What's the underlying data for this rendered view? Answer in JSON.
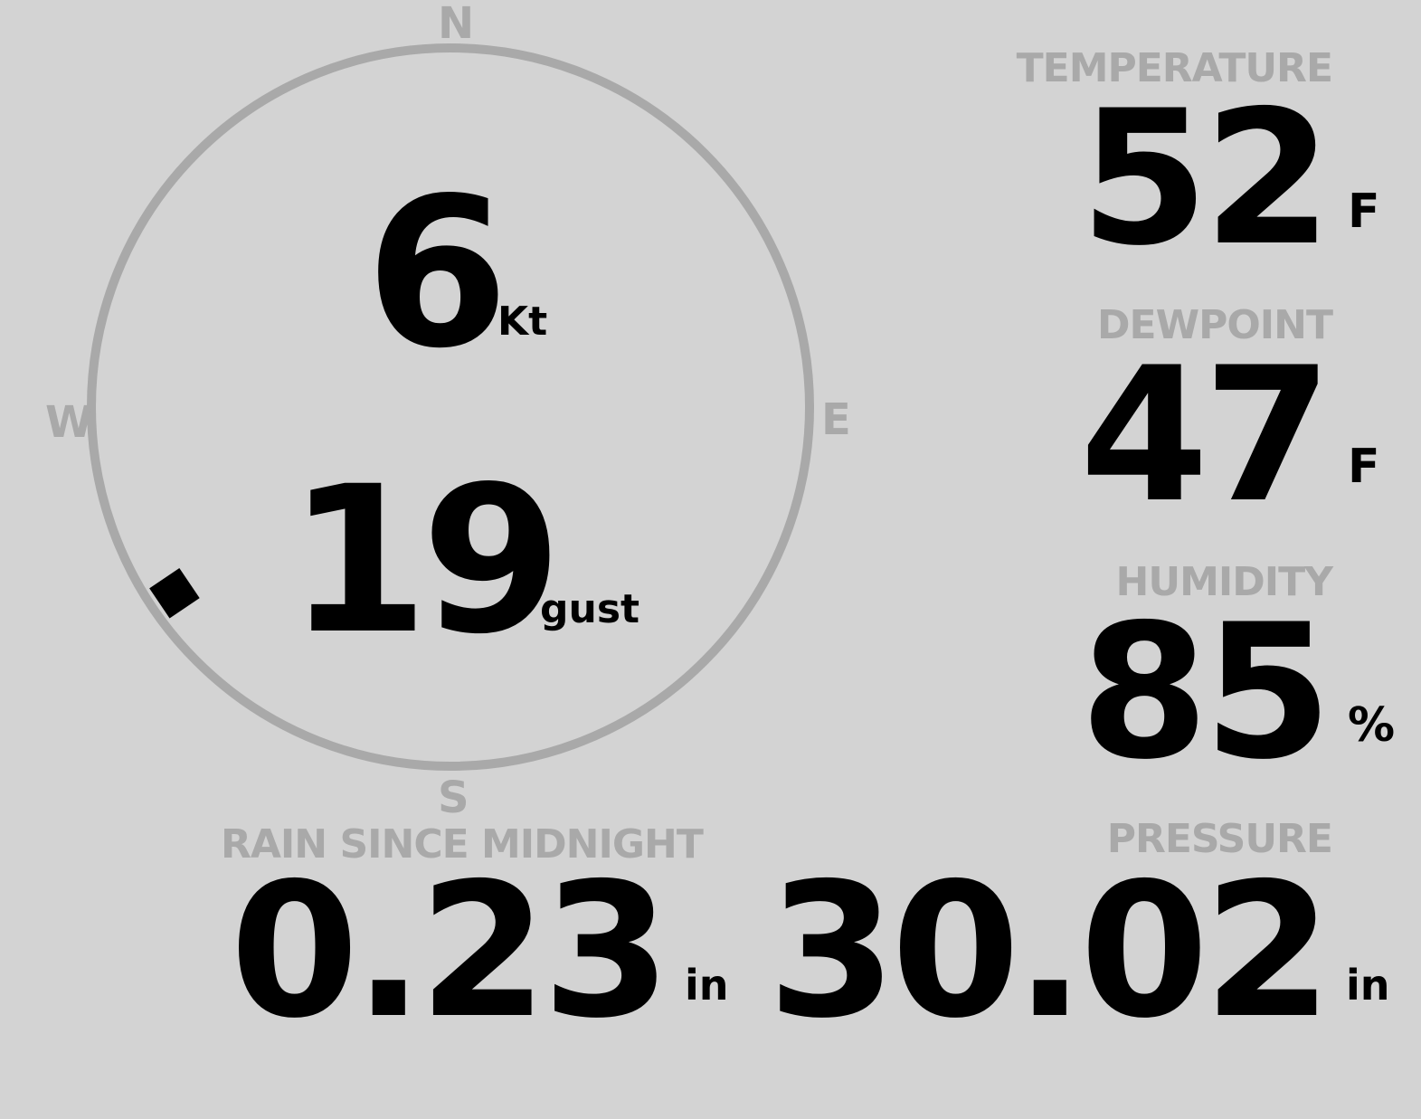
{
  "wind": {
    "speed": "6",
    "speed_unit": "Kt",
    "gust": "19",
    "gust_label": "gust",
    "direction_deg": 236,
    "cardinals": {
      "n": "N",
      "e": "E",
      "s": "S",
      "w": "W"
    }
  },
  "temperature": {
    "label": "TEMPERATURE",
    "value": "52",
    "unit": "F"
  },
  "dewpoint": {
    "label": "DEWPOINT",
    "value": "47",
    "unit": "F"
  },
  "humidity": {
    "label": "HUMIDITY",
    "value": "85",
    "unit": "%"
  },
  "rain": {
    "label": "RAIN SINCE MIDNIGHT",
    "value": "0.23",
    "unit": "in"
  },
  "pressure": {
    "label": "PRESSURE",
    "value": "30.02",
    "unit": "in"
  },
  "colors": {
    "background": "#d3d3d3",
    "dim": "#a9a9a9",
    "text": "#000000"
  }
}
